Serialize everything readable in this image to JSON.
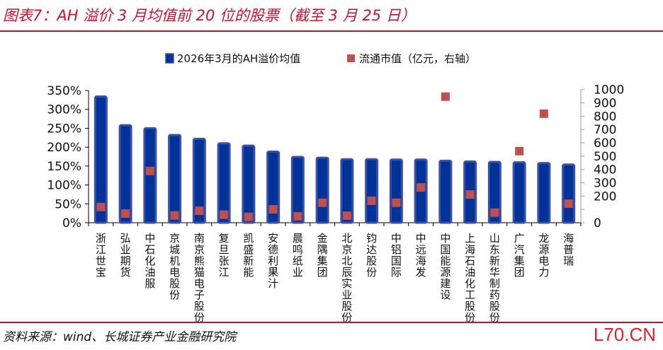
{
  "title": "图表7：AH 溢价 3 月均值前 20 位的股票（截至 3 月 25 日）",
  "source": "资料来源：wind、长城证券产业金融研究院",
  "watermark": "L70.CN",
  "colors": {
    "title": "#c8102e",
    "bar": "#003399",
    "bar_border": "#3a4fa8",
    "scatter": "#c0504d"
  },
  "chart_data": {
    "type": "bar",
    "legend_placement": "top",
    "categories": [
      "浙江世宝",
      "弘业期货",
      "中石化油服",
      "京城机电股份",
      "南京熊猫电子股份",
      "复旦张江",
      "凯盛新能",
      "安德利果汁",
      "晨鸣纸业",
      "金隅集团",
      "北京北辰实业股份",
      "钧达股份",
      "中铝国际",
      "中远海发",
      "中国能源建设",
      "上海石油化工股份",
      "山东新华制药股份",
      "广汽集团",
      "龙源电力",
      "海普瑞"
    ],
    "series": [
      {
        "name": "2026年3月的AH溢价均值",
        "type": "bar",
        "axis": "left",
        "unit": "%",
        "values": [
          334,
          258,
          250,
          232,
          222,
          210,
          204,
          188,
          174,
          172,
          168,
          168,
          167,
          167,
          164,
          162,
          161,
          160,
          158,
          154
        ]
      },
      {
        "name": "流通市值（亿元，右轴）",
        "type": "scatter",
        "axis": "right",
        "values": [
          118,
          69,
          389,
          55,
          90,
          60,
          44,
          101,
          48,
          150,
          53,
          165,
          150,
          265,
          947,
          212,
          76,
          538,
          819,
          143
        ]
      }
    ],
    "y_left": {
      "range": [
        0,
        350
      ],
      "ticks": [
        "0%",
        "50%",
        "100%",
        "150%",
        "200%",
        "250%",
        "300%",
        "350%"
      ]
    },
    "y_right": {
      "range": [
        0,
        1000
      ],
      "ticks": [
        "0",
        "",
        "200",
        "300",
        "400",
        "500",
        "600",
        "700",
        "800",
        "900",
        "1000"
      ]
    },
    "grid": false
  }
}
